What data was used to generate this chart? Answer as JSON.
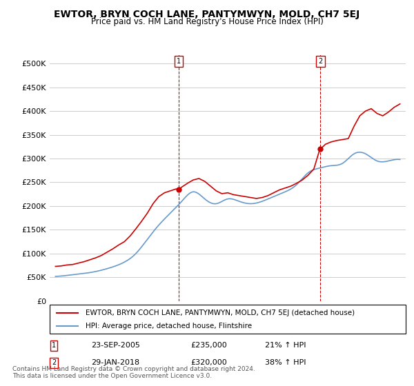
{
  "title": "EWTOR, BRYN COCH LANE, PANTYMWYN, MOLD, CH7 5EJ",
  "subtitle": "Price paid vs. HM Land Registry's House Price Index (HPI)",
  "ylabel_ticks": [
    "£0",
    "£50K",
    "£100K",
    "£150K",
    "£200K",
    "£250K",
    "£300K",
    "£350K",
    "£400K",
    "£450K",
    "£500K"
  ],
  "ytick_values": [
    0,
    50000,
    100000,
    150000,
    200000,
    250000,
    300000,
    350000,
    400000,
    450000,
    500000
  ],
  "ylim": [
    0,
    520000
  ],
  "legend_line1": "EWTOR, BRYN COCH LANE, PANTYMWYN, MOLD, CH7 5EJ (detached house)",
  "legend_line2": "HPI: Average price, detached house, Flintshire",
  "annotation1_num": "1",
  "annotation1_date": "23-SEP-2005",
  "annotation1_price": "£235,000",
  "annotation1_hpi": "21% ↑ HPI",
  "annotation2_num": "2",
  "annotation2_date": "29-JAN-2018",
  "annotation2_price": "£320,000",
  "annotation2_hpi": "38% ↑ HPI",
  "footer": "Contains HM Land Registry data © Crown copyright and database right 2024.\nThis data is licensed under the Open Government Licence v3.0.",
  "red_color": "#cc0000",
  "blue_color": "#6699cc",
  "hpi_years": [
    1995,
    1996,
    1997,
    1998,
    1999,
    2000,
    2001,
    2002,
    2003,
    2004,
    2005,
    2006,
    2007,
    2008,
    2009,
    2010,
    2011,
    2012,
    2013,
    2014,
    2015,
    2016,
    2017,
    2018,
    2019,
    2020,
    2021,
    2022,
    2023,
    2024,
    2025
  ],
  "hpi_values": [
    52000,
    54000,
    57000,
    60000,
    65000,
    72000,
    82000,
    100000,
    130000,
    160000,
    185000,
    210000,
    230000,
    215000,
    205000,
    215000,
    210000,
    205000,
    210000,
    220000,
    230000,
    245000,
    270000,
    280000,
    285000,
    290000,
    310000,
    310000,
    295000,
    295000,
    298000
  ],
  "sale1_x": 2005.73,
  "sale1_y": 235000,
  "sale2_x": 2018.08,
  "sale2_y": 320000,
  "red_series_x": [
    1995.0,
    1995.5,
    1996.0,
    1996.5,
    1997.0,
    1997.5,
    1998.0,
    1998.5,
    1999.0,
    1999.5,
    2000.0,
    2000.5,
    2001.0,
    2001.5,
    2002.0,
    2002.5,
    2003.0,
    2003.5,
    2004.0,
    2004.5,
    2005.0,
    2005.5,
    2005.73,
    2006.0,
    2006.5,
    2007.0,
    2007.5,
    2008.0,
    2008.5,
    2009.0,
    2009.5,
    2010.0,
    2010.5,
    2011.0,
    2011.5,
    2012.0,
    2012.5,
    2013.0,
    2013.5,
    2014.0,
    2014.5,
    2015.0,
    2015.5,
    2016.0,
    2016.5,
    2017.0,
    2017.5,
    2018.0,
    2018.08,
    2018.5,
    2019.0,
    2019.5,
    2020.0,
    2020.5,
    2021.0,
    2021.5,
    2022.0,
    2022.5,
    2023.0,
    2023.5,
    2024.0,
    2024.5,
    2025.0
  ],
  "red_series_y": [
    73000,
    74000,
    76000,
    77000,
    80000,
    83000,
    87000,
    91000,
    96000,
    103000,
    110000,
    118000,
    125000,
    137000,
    152000,
    168000,
    185000,
    205000,
    220000,
    228000,
    232000,
    236000,
    235000,
    240000,
    248000,
    255000,
    258000,
    252000,
    242000,
    232000,
    226000,
    228000,
    224000,
    222000,
    220000,
    218000,
    216000,
    218000,
    222000,
    228000,
    234000,
    238000,
    242000,
    248000,
    255000,
    265000,
    278000,
    318000,
    320000,
    330000,
    335000,
    338000,
    340000,
    342000,
    368000,
    390000,
    400000,
    405000,
    395000,
    390000,
    398000,
    408000,
    415000
  ],
  "vline1_x": 2005.73,
  "vline2_x": 2018.08,
  "xmin": 1994.5,
  "xmax": 2025.5
}
